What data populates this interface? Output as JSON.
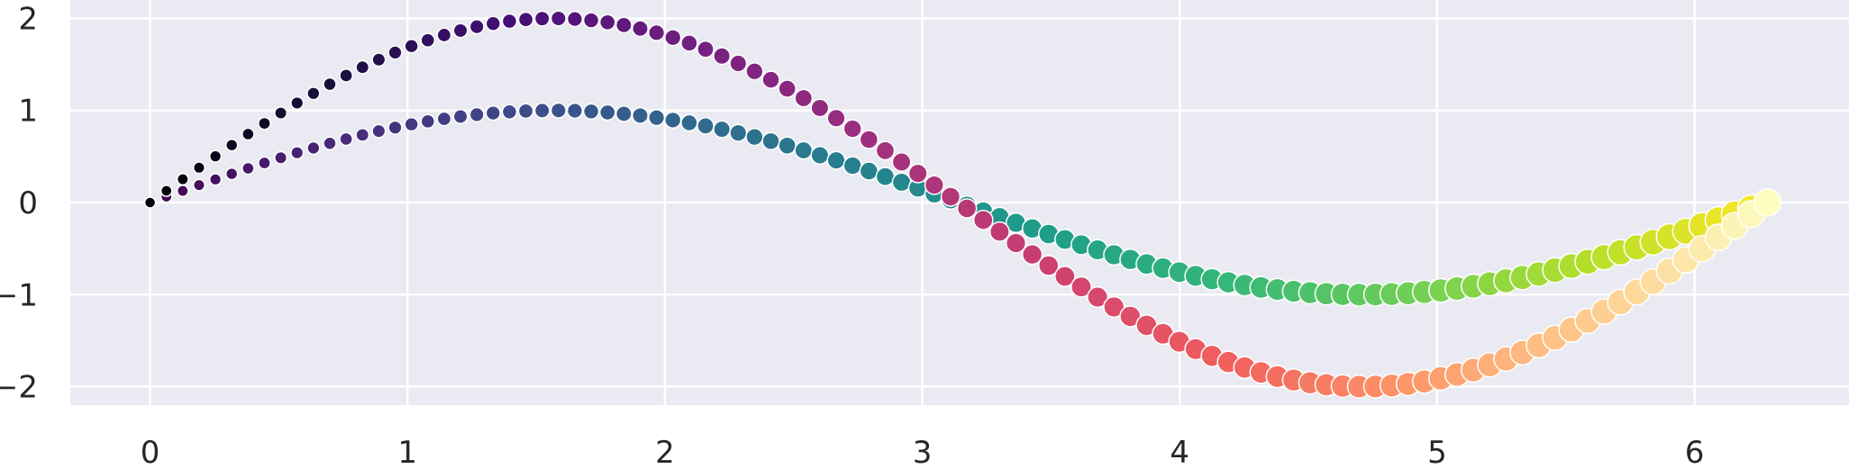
{
  "chart_data": {
    "type": "scatter",
    "title": "",
    "xlabel": "",
    "ylabel": "",
    "xlim": [
      -0.31,
      6.6
    ],
    "ylim": [
      -2.2,
      2.2
    ],
    "x_ticks": [
      0,
      1,
      2,
      3,
      4,
      5,
      6
    ],
    "x_tick_labels": [
      "0",
      "1",
      "2",
      "3",
      "4",
      "5",
      "6"
    ],
    "y_ticks": [
      2,
      1,
      0,
      -1,
      -2
    ],
    "y_tick_labels": [
      "2",
      "1",
      "0",
      "−1",
      "−2"
    ],
    "grid": true,
    "background": "#eaeaf2",
    "grid_color": "#ffffff",
    "point_edge_color": "#ffffff",
    "x_domain": [
      0,
      6.2832
    ],
    "points_per_series": 100,
    "size_range_radius_px": [
      6,
      15
    ],
    "series": [
      {
        "function": "sin(x)",
        "amplitude": 1,
        "colormap": "viridis",
        "colormap_stops": [
          "#440154",
          "#482878",
          "#3e4989",
          "#31688e",
          "#26828e",
          "#1f9e89",
          "#35b779",
          "#6ece58",
          "#b5de2b",
          "#fde725"
        ]
      },
      {
        "function": "2*sin(x)",
        "amplitude": 2,
        "colormap": "magma",
        "colormap_stops": [
          "#000004",
          "#180f3d",
          "#440f76",
          "#721f81",
          "#9e2f7f",
          "#cd4071",
          "#f1605d",
          "#fd9668",
          "#feca8d",
          "#fcfdbf"
        ]
      }
    ]
  }
}
